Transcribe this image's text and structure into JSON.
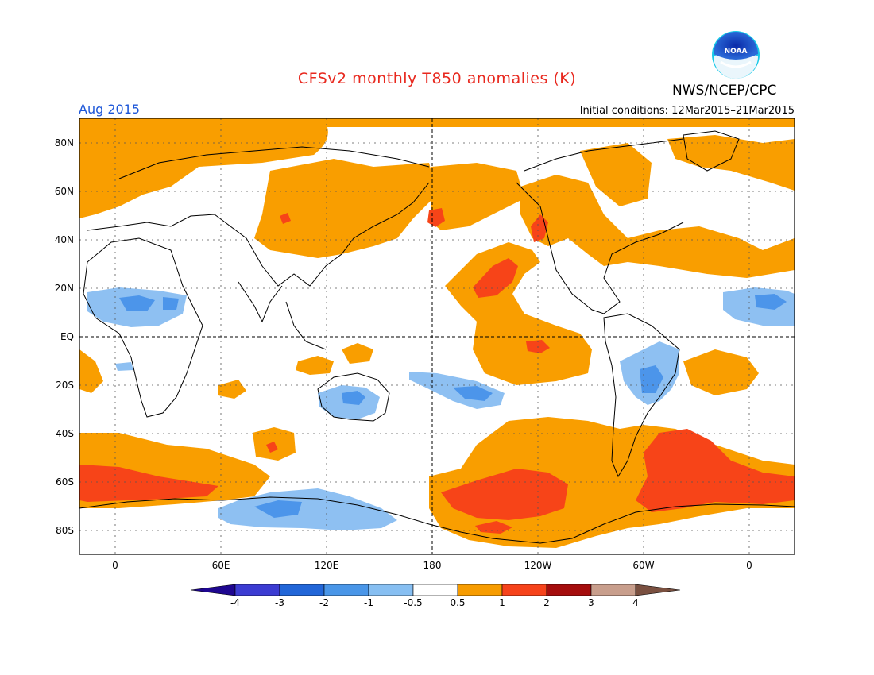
{
  "header": {
    "title": "CFSv2 monthly T850 anomalies (K)",
    "agency": "NWS/NCEP/CPC",
    "valid_month": "Aug 2015",
    "initial_conditions": "Initial conditions: 12Mar2015–21Mar2015",
    "logo_text": "NOAA"
  },
  "map": {
    "projection": "cylindrical equidistant, centered 180",
    "lat_labels": [
      "80N",
      "60N",
      "40N",
      "20N",
      "EQ",
      "20S",
      "40S",
      "60S",
      "80S"
    ],
    "lon_labels": [
      "0",
      "60E",
      "120E",
      "180",
      "120W",
      "60W",
      "0"
    ]
  },
  "colorbar": {
    "labels": [
      "-4",
      "-3",
      "-2",
      "-1",
      "-0.5",
      "0.5",
      "1",
      "2",
      "3",
      "4"
    ],
    "colors": [
      "#1e0690",
      "#3c3cd2",
      "#2266d8",
      "#4a96e8",
      "#87bff2",
      "#ffffff",
      "#f79c00",
      "#f6431b",
      "#a50d0d",
      "#c89e8c",
      "#7a5040"
    ]
  },
  "colors": {
    "orange": "#f99e00",
    "red": "#f74418",
    "blue_light": "#8ec0f2",
    "blue_mid": "#4c95ea"
  }
}
